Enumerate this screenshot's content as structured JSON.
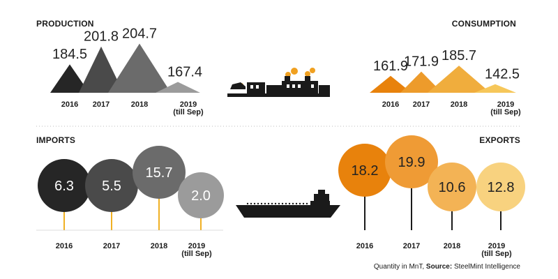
{
  "colors": {
    "production": [
      "#262626",
      "#4a4a4a",
      "#6b6b6b",
      "#9b9b9b"
    ],
    "consumption": [
      "#e8820c",
      "#ed9b2b",
      "#f0ad3d",
      "#f6c75a"
    ],
    "imports": [
      "#262626",
      "#4a4a4a",
      "#6b6b6b",
      "#9b9b9b"
    ],
    "exports": [
      "#e8820c",
      "#ef9b35",
      "#f3b355",
      "#f8d27f"
    ],
    "stem": "#f0b023",
    "divider": "#bbbbbb",
    "icon": "#1a1a1a",
    "smoke": "#f0a020"
  },
  "icons": [
    "train-icon",
    "cargo-ship-icon"
  ],
  "chart_data": [
    {
      "type": "area",
      "title": "PRODUCTION",
      "categories": [
        "2016",
        "2017",
        "2018",
        "2019\n(till Sep)"
      ],
      "values": [
        184.5,
        201.8,
        204.7,
        167.4
      ],
      "labels": [
        "184.5",
        "201.8",
        "204.7",
        "167.4"
      ]
    },
    {
      "type": "area",
      "title": "CONSUMPTION",
      "categories": [
        "2016",
        "2017",
        "2018",
        "2019\n(till Sep)"
      ],
      "values": [
        161.9,
        171.9,
        185.7,
        142.5
      ],
      "labels": [
        "161.9",
        "171.9",
        "185.7",
        "142.5"
      ]
    },
    {
      "type": "scatter",
      "title": "IMPORTS",
      "categories": [
        "2016",
        "2017",
        "2018",
        "2019\n(till Sep)"
      ],
      "values": [
        6.3,
        5.5,
        15.7,
        2.0
      ],
      "labels": [
        "6.3",
        "5.5",
        "15.7",
        "2.0"
      ]
    },
    {
      "type": "scatter",
      "title": "EXPORTS",
      "categories": [
        "2016",
        "2017",
        "2018",
        "2019\n(till Sep)"
      ],
      "values": [
        18.2,
        19.9,
        10.6,
        12.8
      ],
      "labels": [
        "18.2",
        "19.9",
        "10.6",
        "12.8"
      ]
    }
  ],
  "footer": {
    "quantity": "Quantity in MnT, ",
    "source_label": "Source: ",
    "source_name": "SteelMint Intelligence"
  }
}
